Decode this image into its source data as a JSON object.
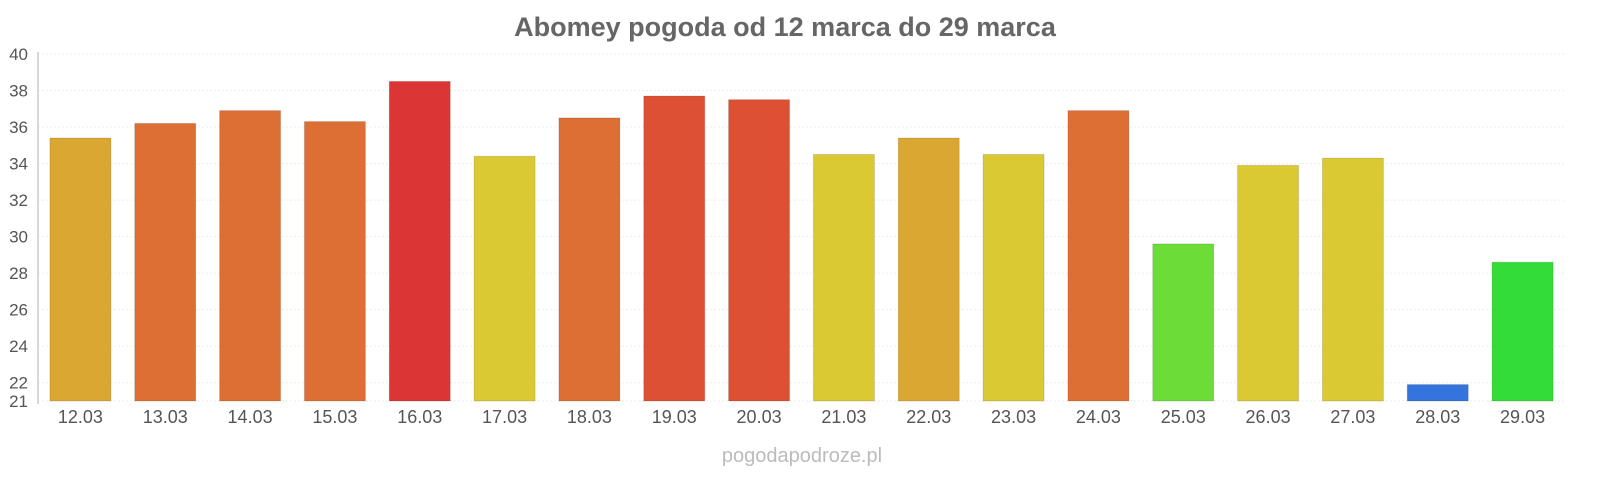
{
  "chart_data": {
    "type": "bar",
    "title": "Abomey pogoda od 12 marca do 29 marca",
    "xlabel": "",
    "ylabel": "",
    "ylim": [
      21,
      40
    ],
    "yticks": [
      21,
      22,
      24,
      26,
      28,
      30,
      32,
      34,
      36,
      38,
      40
    ],
    "categories": [
      "12.03",
      "13.03",
      "14.03",
      "15.03",
      "16.03",
      "17.03",
      "18.03",
      "19.03",
      "20.03",
      "21.03",
      "22.03",
      "23.03",
      "24.03",
      "25.03",
      "26.03",
      "27.03",
      "28.03",
      "29.03"
    ],
    "values": [
      35.4,
      36.2,
      36.9,
      36.3,
      38.5,
      34.4,
      36.5,
      37.7,
      37.5,
      34.5,
      35.4,
      34.5,
      36.9,
      29.6,
      33.9,
      34.3,
      21.9,
      28.6
    ],
    "colors": [
      "#dba733",
      "#dd6f35",
      "#dd6f35",
      "#dd6f35",
      "#dc3535",
      "#dbc933",
      "#dd6f35",
      "#dd5033",
      "#dd5033",
      "#dbc933",
      "#dba733",
      "#dbc933",
      "#dd6f35",
      "#6bdc38",
      "#dbc933",
      "#dbc933",
      "#3375dc",
      "#33dc38"
    ],
    "grid": true,
    "watermark": "pogodapodroze.pl"
  }
}
